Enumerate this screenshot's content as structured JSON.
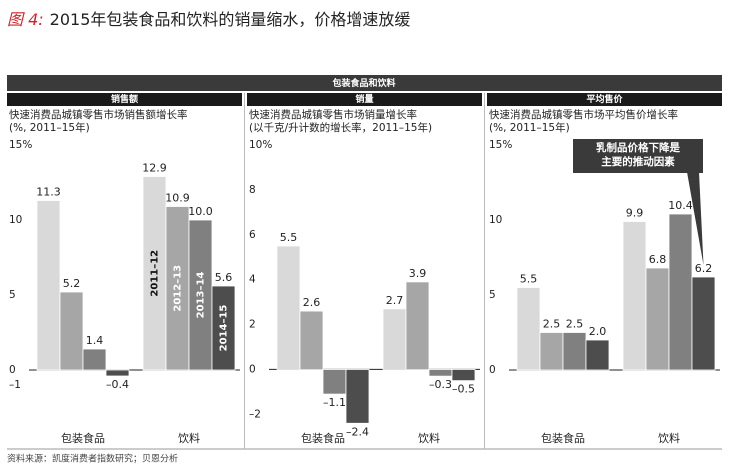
{
  "figure_label": "图 4:",
  "title": "2015年包装食品和饮料的销量缩水，价格增速放缓",
  "banner": "包装食品和饮料",
  "source": "资料来源：凯度消费者指数研究；贝恩分析",
  "chart_data": [
    {
      "type": "bar",
      "title": "销售额",
      "subtitle": [
        "快速消费品城镇零售市场销售额增长率",
        "(%, 2011–15年)"
      ],
      "categories": [
        "包装食品",
        "饮料"
      ],
      "series": [
        {
          "name": "2011–12",
          "color": "#d9d9d9",
          "values": [
            11.3,
            12.9
          ],
          "value_labels": [
            "11.3",
            "12.9"
          ]
        },
        {
          "name": "2012–13",
          "color": "#a6a6a6",
          "values": [
            5.2,
            10.9
          ],
          "value_labels": [
            "5.2",
            "10.9"
          ]
        },
        {
          "name": "2013–14",
          "color": "#808080",
          "values": [
            1.4,
            10.0
          ],
          "value_labels": [
            "1.4",
            "10.0"
          ]
        },
        {
          "name": "2014–15",
          "color": "#4d4d4d",
          "values": [
            -0.4,
            5.6
          ],
          "value_labels": [
            "–0.4",
            "5.6"
          ]
        }
      ],
      "ylim": [
        -4,
        15
      ],
      "yticks": [
        {
          "value": 15,
          "label": "15%"
        },
        10,
        5,
        0,
        {
          "value": -1,
          "label": "–1"
        }
      ],
      "grid": false,
      "legend": "inside-bars"
    },
    {
      "type": "bar",
      "title": "销量",
      "subtitle": [
        "快速消费品城镇零售市场销量增长率",
        "(以千克/升计数的增长率，2011–15年)"
      ],
      "categories": [
        "包装食品",
        "饮料"
      ],
      "series": [
        {
          "color": "#d9d9d9",
          "values": [
            5.5,
            2.7
          ],
          "value_labels": [
            "5.5",
            "2.7"
          ]
        },
        {
          "color": "#a6a6a6",
          "values": [
            2.6,
            3.9
          ],
          "value_labels": [
            "2.6",
            "3.9"
          ]
        },
        {
          "color": "#808080",
          "values": [
            -1.1,
            -0.3
          ],
          "value_labels": [
            "–1.1",
            "–0.3"
          ]
        },
        {
          "color": "#4d4d4d",
          "values": [
            -2.4,
            -0.5
          ],
          "value_labels": [
            "–2.4",
            "–0.5"
          ]
        }
      ],
      "ylim": [
        -2.7,
        10
      ],
      "yticks": [
        {
          "value": 10,
          "label": "10%"
        },
        8,
        6,
        4,
        2,
        0,
        {
          "value": -2,
          "label": "–2"
        }
      ],
      "grid": false
    },
    {
      "type": "bar",
      "title": "平均售价",
      "subtitle": [
        "快速消费品城镇零售市场平均售价增长率",
        "(%, 2011–15年)"
      ],
      "categories": [
        "包装食品",
        "饮料"
      ],
      "series": [
        {
          "color": "#d9d9d9",
          "values": [
            5.5,
            9.9
          ],
          "value_labels": [
            "5.5",
            "9.9"
          ]
        },
        {
          "color": "#a6a6a6",
          "values": [
            2.5,
            6.8
          ],
          "value_labels": [
            "2.5",
            "6.8"
          ]
        },
        {
          "color": "#808080",
          "values": [
            2.5,
            10.4
          ],
          "value_labels": [
            "2.5",
            "10.4"
          ]
        },
        {
          "color": "#4d4d4d",
          "values": [
            2.0,
            6.2
          ],
          "value_labels": [
            "2.0",
            "6.2"
          ]
        }
      ],
      "ylim": [
        -4,
        15
      ],
      "yticks": [
        {
          "value": 15,
          "label": "15%"
        },
        10,
        5,
        0
      ],
      "grid": false,
      "annotation": [
        "乳制品价格下降是",
        "主要的推动因素"
      ]
    }
  ]
}
